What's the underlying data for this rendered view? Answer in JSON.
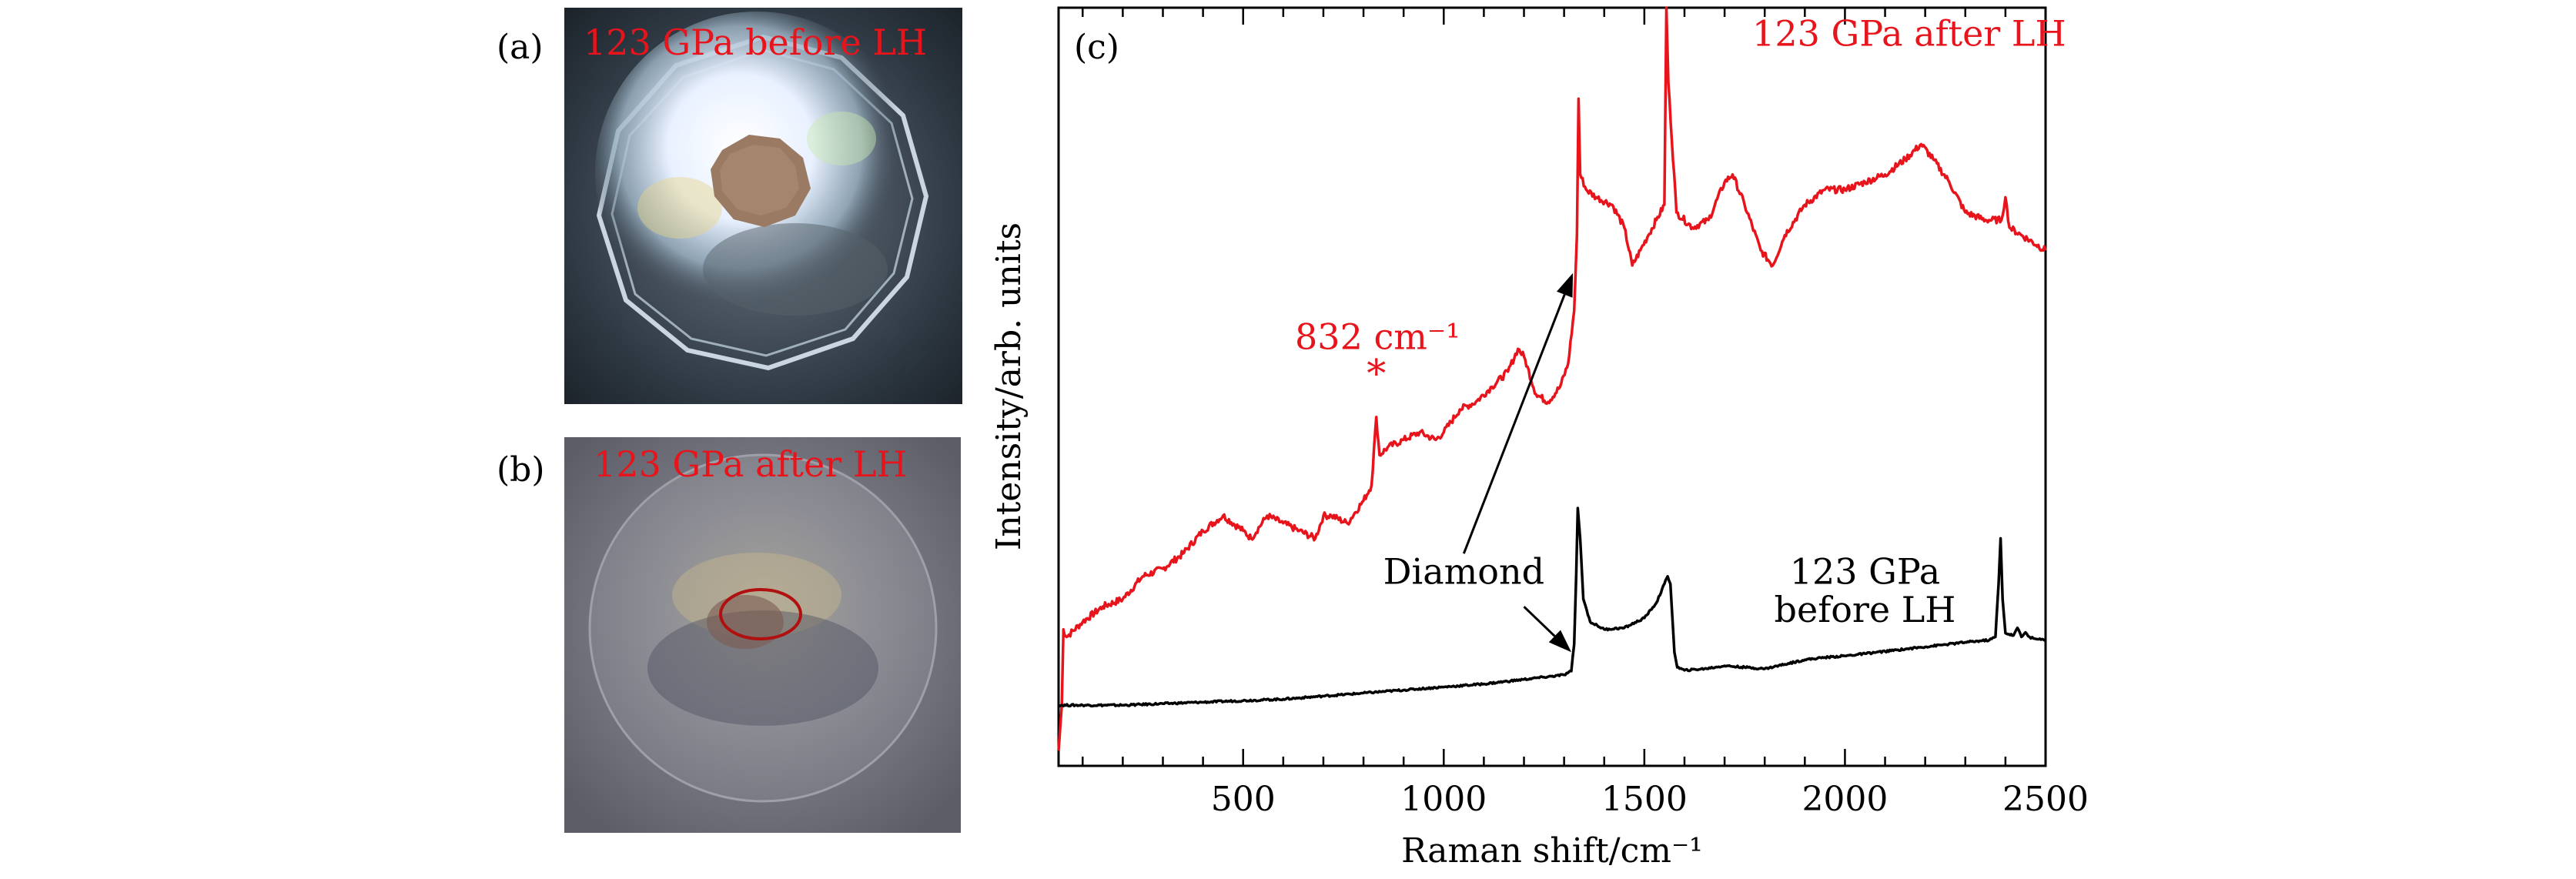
{
  "panels": {
    "a": {
      "label": "(a)",
      "caption": "123 GPa before LH"
    },
    "b": {
      "label": "(b)",
      "caption": "123 GPa after LH"
    },
    "c": {
      "label": "(c)"
    }
  },
  "colors": {
    "red": "#e8141c",
    "black": "#000000",
    "ellipse": "#b01010"
  },
  "chart_data": {
    "type": "line",
    "title": "",
    "xlabel": "Raman shift/cm⁻¹",
    "ylabel": "Intensity/arb. units",
    "xlim": [
      40,
      2500
    ],
    "ylim": [
      0,
      100
    ],
    "x_ticks": [
      500,
      1000,
      1500,
      2000,
      2500
    ],
    "x_minor_step": 100,
    "yticks_shown": false,
    "series": [
      {
        "name": "123 GPa after LH",
        "color": "#e8141c",
        "points": [
          [
            40,
            2
          ],
          [
            48,
            8
          ],
          [
            52,
            18
          ],
          [
            60,
            17
          ],
          [
            100,
            19
          ],
          [
            150,
            21
          ],
          [
            200,
            22
          ],
          [
            250,
            25
          ],
          [
            300,
            26
          ],
          [
            350,
            28
          ],
          [
            400,
            31
          ],
          [
            450,
            33
          ],
          [
            500,
            31
          ],
          [
            520,
            30
          ],
          [
            560,
            33
          ],
          [
            600,
            32
          ],
          [
            640,
            31
          ],
          [
            680,
            30
          ],
          [
            700,
            33
          ],
          [
            720,
            33
          ],
          [
            760,
            32
          ],
          [
            800,
            35
          ],
          [
            820,
            37
          ],
          [
            832,
            46
          ],
          [
            840,
            41
          ],
          [
            860,
            42
          ],
          [
            900,
            43
          ],
          [
            940,
            44
          ],
          [
            980,
            43
          ],
          [
            1000,
            44
          ],
          [
            1040,
            47
          ],
          [
            1080,
            48
          ],
          [
            1120,
            50
          ],
          [
            1160,
            52
          ],
          [
            1185,
            55
          ],
          [
            1200,
            54
          ],
          [
            1230,
            49
          ],
          [
            1260,
            48
          ],
          [
            1290,
            50
          ],
          [
            1310,
            53
          ],
          [
            1325,
            60
          ],
          [
            1332,
            70
          ],
          [
            1336,
            88
          ],
          [
            1340,
            78
          ],
          [
            1355,
            76
          ],
          [
            1380,
            75
          ],
          [
            1420,
            74
          ],
          [
            1450,
            71
          ],
          [
            1470,
            66
          ],
          [
            1490,
            68
          ],
          [
            1510,
            70
          ],
          [
            1530,
            72
          ],
          [
            1550,
            74
          ],
          [
            1555,
            100
          ],
          [
            1560,
            90
          ],
          [
            1580,
            73
          ],
          [
            1620,
            71
          ],
          [
            1660,
            72
          ],
          [
            1700,
            77
          ],
          [
            1720,
            78
          ],
          [
            1750,
            74
          ],
          [
            1790,
            68
          ],
          [
            1820,
            66
          ],
          [
            1850,
            70
          ],
          [
            1900,
            74
          ],
          [
            1950,
            76
          ],
          [
            2000,
            76
          ],
          [
            2050,
            77
          ],
          [
            2100,
            78
          ],
          [
            2150,
            80
          ],
          [
            2190,
            82
          ],
          [
            2220,
            80
          ],
          [
            2260,
            77
          ],
          [
            2300,
            73
          ],
          [
            2350,
            72
          ],
          [
            2390,
            72
          ],
          [
            2400,
            75
          ],
          [
            2410,
            71
          ],
          [
            2440,
            70
          ],
          [
            2500,
            68
          ]
        ]
      },
      {
        "name": "123 GPa before LH",
        "color": "#000000",
        "points": [
          [
            40,
            8
          ],
          [
            100,
            8
          ],
          [
            200,
            8
          ],
          [
            300,
            8.2
          ],
          [
            400,
            8.4
          ],
          [
            500,
            8.6
          ],
          [
            600,
            8.8
          ],
          [
            700,
            9.2
          ],
          [
            800,
            9.6
          ],
          [
            900,
            10
          ],
          [
            1000,
            10.4
          ],
          [
            1100,
            10.8
          ],
          [
            1200,
            11.4
          ],
          [
            1250,
            11.7
          ],
          [
            1300,
            12
          ],
          [
            1318,
            12.5
          ],
          [
            1325,
            16
          ],
          [
            1330,
            25
          ],
          [
            1334,
            34
          ],
          [
            1340,
            30
          ],
          [
            1348,
            22
          ],
          [
            1365,
            19
          ],
          [
            1400,
            18
          ],
          [
            1450,
            18.2
          ],
          [
            1500,
            19.5
          ],
          [
            1530,
            21.5
          ],
          [
            1550,
            24
          ],
          [
            1558,
            25
          ],
          [
            1565,
            24
          ],
          [
            1575,
            15
          ],
          [
            1582,
            13
          ],
          [
            1600,
            12.6
          ],
          [
            1650,
            12.8
          ],
          [
            1700,
            13.2
          ],
          [
            1750,
            13
          ],
          [
            1800,
            12.8
          ],
          [
            1850,
            13.4
          ],
          [
            1900,
            14
          ],
          [
            1950,
            14.3
          ],
          [
            2000,
            14.5
          ],
          [
            2050,
            14.8
          ],
          [
            2100,
            15.1
          ],
          [
            2150,
            15.4
          ],
          [
            2200,
            15.7
          ],
          [
            2250,
            16
          ],
          [
            2300,
            16.3
          ],
          [
            2360,
            16.6
          ],
          [
            2375,
            17
          ],
          [
            2383,
            24
          ],
          [
            2388,
            30
          ],
          [
            2393,
            22
          ],
          [
            2400,
            17.5
          ],
          [
            2420,
            17.2
          ],
          [
            2430,
            18.2
          ],
          [
            2440,
            17
          ],
          [
            2450,
            17.6
          ],
          [
            2460,
            17
          ],
          [
            2470,
            16.8
          ],
          [
            2480,
            16.7
          ],
          [
            2500,
            16.6
          ]
        ]
      }
    ],
    "annotations": [
      {
        "text": "123 GPa after LH",
        "color": "#e8141c",
        "x": 2160,
        "y": 95
      },
      {
        "text": "832 cm⁻¹",
        "color": "#e8141c",
        "x": 835,
        "y": 55
      },
      {
        "text": "*",
        "color": "#e8141c",
        "x": 832,
        "y": 50
      },
      {
        "text": "Diamond",
        "color": "#000000",
        "x": 1050,
        "y": 24
      },
      {
        "text": "123 GPa",
        "color": "#000000",
        "x": 2050,
        "y": 24
      },
      {
        "text": "before LH",
        "color": "#000000",
        "x": 2050,
        "y": 19
      }
    ],
    "arrows": [
      {
        "label": "Diamond",
        "from": [
          1050,
          28
        ],
        "to": [
          1322,
          65
        ]
      },
      {
        "label": "Diamond",
        "from": [
          1200,
          21
        ],
        "to": [
          1318,
          15
        ]
      }
    ]
  }
}
